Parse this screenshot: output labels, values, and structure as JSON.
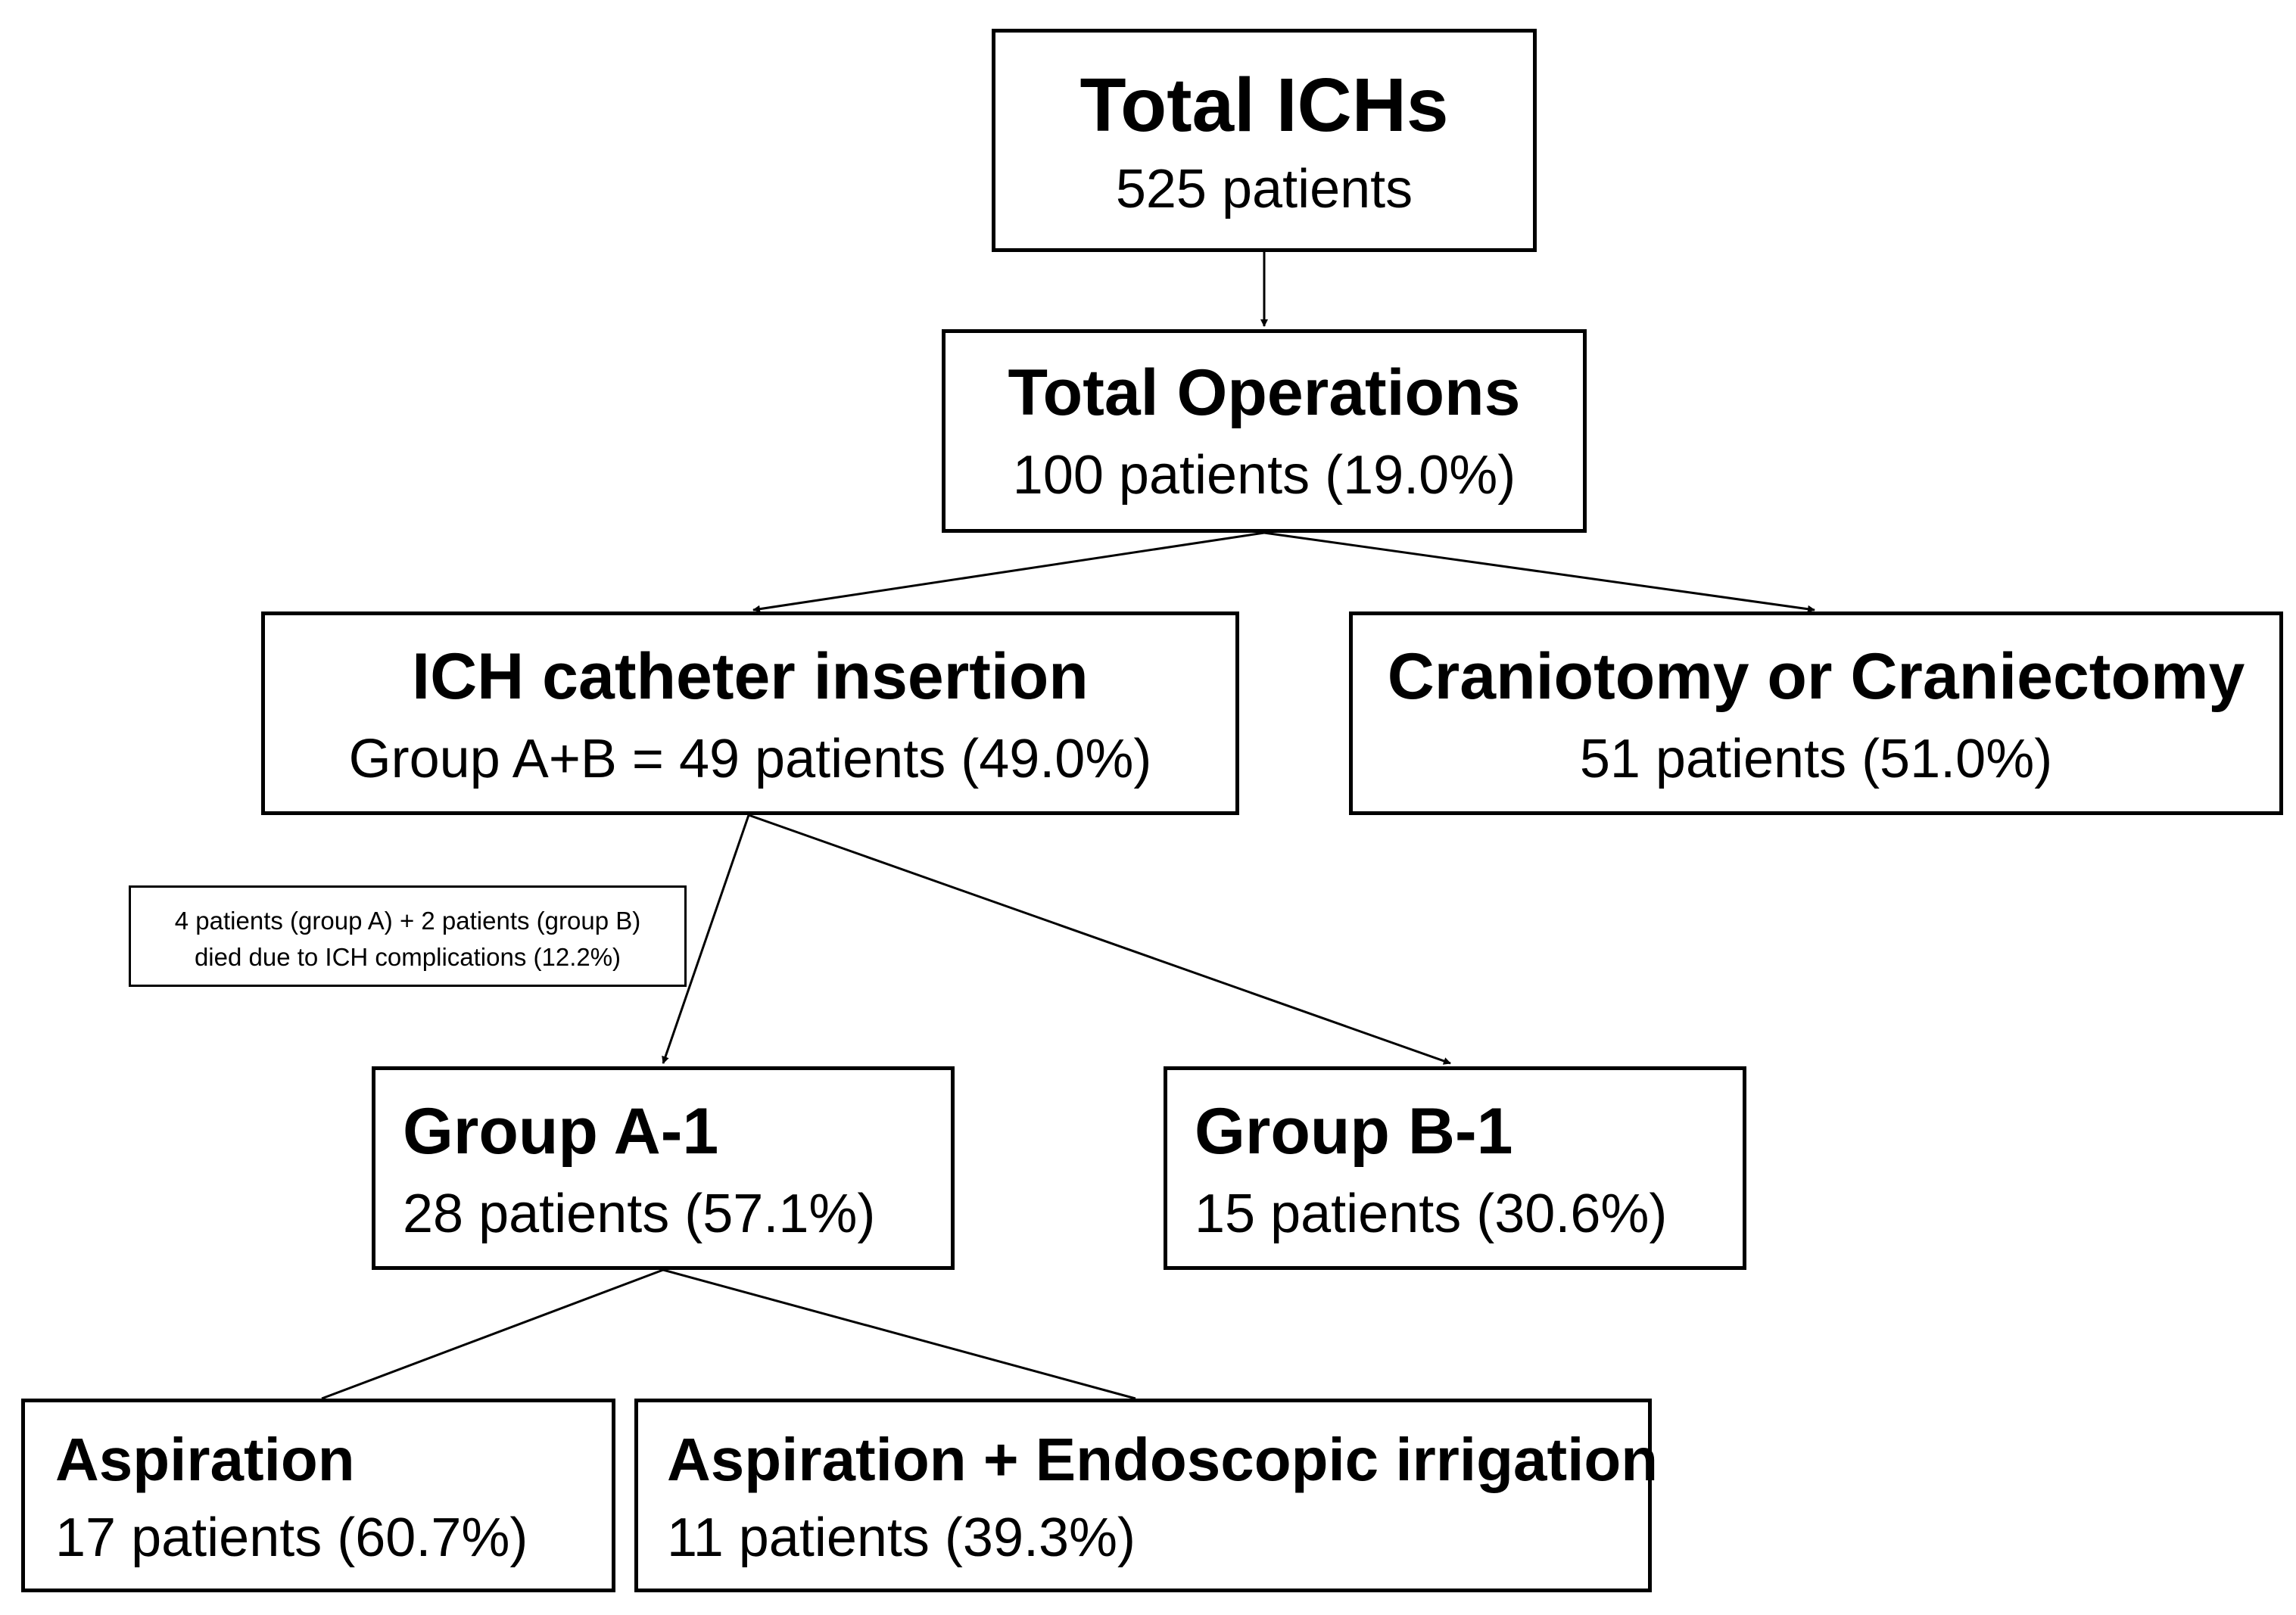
{
  "nodes": {
    "total_ichs": {
      "title": "Total ICHs",
      "subtitle": "525 patients"
    },
    "total_operations": {
      "title": "Total Operations",
      "subtitle": "100 patients (19.0%)"
    },
    "ich_catheter": {
      "title": "ICH catheter insertion",
      "subtitle": "Group A+B = 49 patients (49.0%)"
    },
    "craniotomy": {
      "title": "Craniotomy or Craniectomy",
      "subtitle": "51 patients (51.0%)"
    },
    "group_a1": {
      "title": "Group A-1",
      "subtitle": "28 patients (57.1%)"
    },
    "group_b1": {
      "title": "Group B-1",
      "subtitle": "15 patients (30.6%)"
    },
    "aspiration": {
      "title": "Aspiration",
      "subtitle": "17 patients (60.7%)"
    },
    "aspiration_endoscopic": {
      "title": "Aspiration + Endoscopic irrigation",
      "subtitle": "11 patients (39.3%)"
    }
  },
  "note": {
    "line1": "4 patients (group A) + 2 patients (group B)",
    "line2": "died due to ICH complications (12.2%)"
  }
}
